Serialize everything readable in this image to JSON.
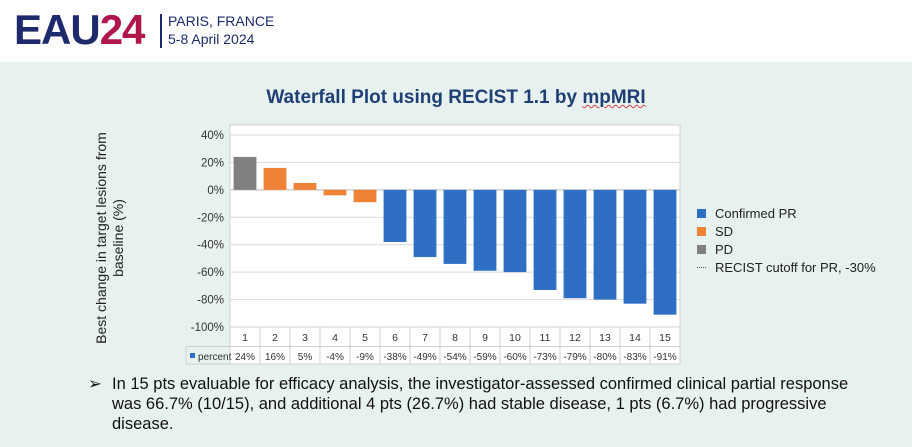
{
  "header": {
    "logo_text": "EAU",
    "logo_number": "24",
    "city": "PARIS, FRANCE",
    "dates": "5-8 April 2024"
  },
  "colors": {
    "confirmed_pr": "#2e6fc4",
    "sd": "#ee8236",
    "pd": "#808080",
    "logo_blue": "#1d2a6b",
    "logo_red": "#b0154c"
  },
  "chart_data": {
    "type": "bar",
    "title_main": "Waterfall Plot using RECIST 1.1 by ",
    "title_tail": "mpMRI",
    "ylabel": "Best change in target lesions from baseline (%)",
    "ylim": [
      -100,
      40
    ],
    "yticks": [
      "40%",
      "20%",
      "0%",
      "-20%",
      "-40%",
      "-60%",
      "-80%",
      "-100%"
    ],
    "grid": true,
    "categories": [
      "1",
      "2",
      "3",
      "4",
      "5",
      "6",
      "7",
      "8",
      "9",
      "10",
      "11",
      "12",
      "13",
      "14",
      "15"
    ],
    "values": [
      24,
      16,
      5,
      -4,
      -9,
      -38,
      -49,
      -54,
      -59,
      -60,
      -73,
      -79,
      -80,
      -83,
      -91
    ],
    "groups": [
      "PD",
      "SD",
      "SD",
      "SD",
      "SD",
      "Confirmed PR",
      "Confirmed PR",
      "Confirmed PR",
      "Confirmed PR",
      "Confirmed PR",
      "Confirmed PR",
      "Confirmed PR",
      "Confirmed PR",
      "Confirmed PR",
      "Confirmed PR"
    ],
    "table_series_name": "percent",
    "table_labels": [
      "24%",
      "16%",
      "5%",
      "-4%",
      "-9%",
      "-38%",
      "-49%",
      "-54%",
      "-59%",
      "-60%",
      "-73%",
      "-79%",
      "-80%",
      "-83%",
      "-91%"
    ],
    "legend_position": "right",
    "legend": [
      {
        "label": "Confirmed PR",
        "kind": "swatch",
        "color": "#2e6fc4"
      },
      {
        "label": "SD",
        "kind": "swatch",
        "color": "#ee8236"
      },
      {
        "label": "PD",
        "kind": "swatch",
        "color": "#808080"
      },
      {
        "label": "RECIST cutoff for PR, -30%",
        "kind": "dotted-line",
        "color": "#555555"
      }
    ]
  },
  "bullet": {
    "arrow": "➢",
    "text": "In 15 pts evaluable for efficacy analysis, the investigator-assessed confirmed clinical partial response was 66.7% (10/15), and additional 4 pts (26.7%) had stable disease, 1 pts (6.7%) had progressive disease."
  }
}
